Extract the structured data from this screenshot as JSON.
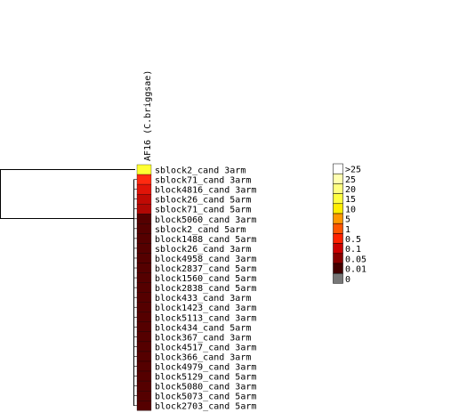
{
  "column_label": "AF16 (C.briggsae)",
  "rows": [
    {
      "label": "sblock2_cand 3arm",
      "color": "#ffff33"
    },
    {
      "label": "sblock71_cand 3arm",
      "color": "#ff2a10"
    },
    {
      "label": "block4816_cand 3arm",
      "color": "#e01408"
    },
    {
      "label": "sblock26_cand 5arm",
      "color": "#c00a04"
    },
    {
      "label": "sblock71_cand 5arm",
      "color": "#b00804"
    },
    {
      "label": "block5060_cand 3arm",
      "color": "#550000"
    },
    {
      "label": "sblock2_cand 5arm",
      "color": "#550000"
    },
    {
      "label": "block1488_cand 5arm",
      "color": "#550000"
    },
    {
      "label": "sblock26_cand 3arm",
      "color": "#550000"
    },
    {
      "label": "block4958_cand 3arm",
      "color": "#550000"
    },
    {
      "label": "block2837_cand 5arm",
      "color": "#550000"
    },
    {
      "label": "block1560_cand 5arm",
      "color": "#550000"
    },
    {
      "label": "block2838_cand 5arm",
      "color": "#550000"
    },
    {
      "label": "block433_cand 3arm",
      "color": "#550000"
    },
    {
      "label": "block1423_cand 3arm",
      "color": "#550000"
    },
    {
      "label": "block5113_cand 3arm",
      "color": "#550000"
    },
    {
      "label": "block434_cand 5arm",
      "color": "#550000"
    },
    {
      "label": "block367_cand 3arm",
      "color": "#550000"
    },
    {
      "label": "block4517_cand 3arm",
      "color": "#550000"
    },
    {
      "label": "block366_cand 3arm",
      "color": "#550000"
    },
    {
      "label": "block4979_cand 3arm",
      "color": "#550000"
    },
    {
      "label": "block5129_cand 5arm",
      "color": "#550000"
    },
    {
      "label": "block5080_cand 3arm",
      "color": "#550000"
    },
    {
      "label": "block5073_cand 5arm",
      "color": "#550000"
    },
    {
      "label": "block2703_cand 5arm",
      "color": "#550000"
    }
  ],
  "legend": [
    {
      "label": ">25",
      "color": "#ffffff"
    },
    {
      "label": "25",
      "color": "#ffffb0"
    },
    {
      "label": "20",
      "color": "#ffff80"
    },
    {
      "label": "15",
      "color": "#ffff40"
    },
    {
      "label": "10",
      "color": "#ffee00"
    },
    {
      "label": "5",
      "color": "#ff9900"
    },
    {
      "label": "1",
      "color": "#ff5500"
    },
    {
      "label": "0.5",
      "color": "#ff2200"
    },
    {
      "label": "0.1",
      "color": "#cc0000"
    },
    {
      "label": "0.05",
      "color": "#880000"
    },
    {
      "label": "0.01",
      "color": "#440000"
    },
    {
      "label": "0",
      "color": "#777777"
    }
  ]
}
